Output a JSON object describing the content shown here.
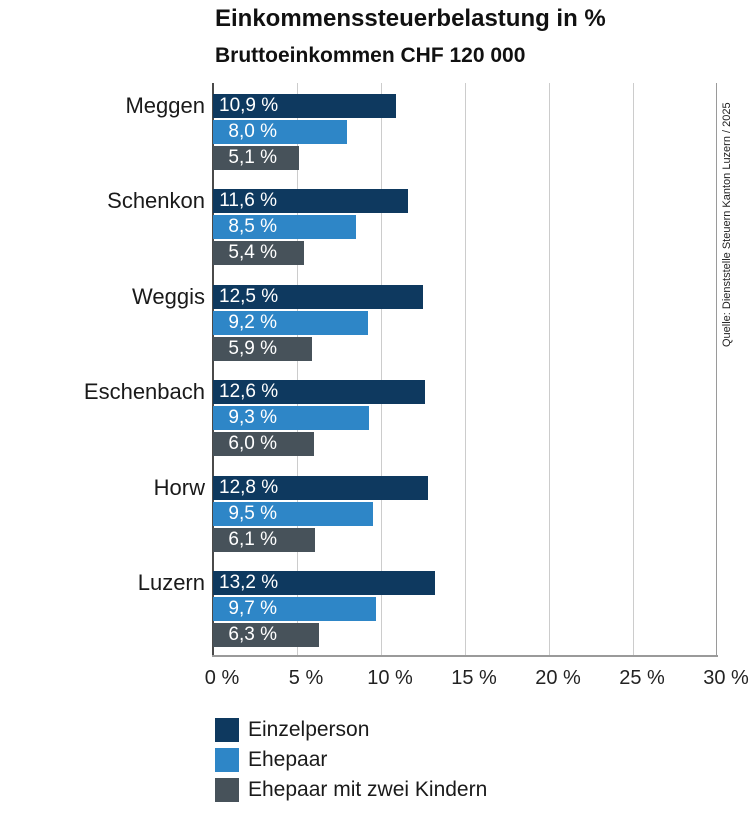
{
  "title": "Einkommenssteuerbelastung in %",
  "subtitle": "Bruttoeinkommen CHF 120 000",
  "source_note": "Quelle: Dienststelle Steuern Kanton Luzern /  2025",
  "colors": {
    "series_einzelperson": "#0e395f",
    "series_ehepaar": "#2e86c7",
    "series_ehepaar_kinder": "#47525a",
    "gridline": "#cccccc",
    "axis": "#9a9a9a",
    "text": "#1a1a1a",
    "bar_value_text": "#ffffff"
  },
  "chart_data": {
    "type": "bar",
    "orientation": "horizontal",
    "title": "Einkommenssteuerbelastung in %",
    "subtitle": "Bruttoeinkommen CHF 120 000",
    "categories": [
      "Meggen",
      "Schenkon",
      "Weggis",
      "Eschenbach",
      "Horw",
      "Luzern"
    ],
    "series": [
      {
        "name": "Einzelperson",
        "color": "#0e395f",
        "values": [
          10.9,
          11.6,
          12.5,
          12.6,
          12.8,
          13.2
        ],
        "value_labels": [
          "10,9 %",
          "11,6 %",
          "12,5 %",
          "12,6 %",
          "12,8 %",
          "13,2 %"
        ]
      },
      {
        "name": "Ehepaar",
        "color": "#2e86c7",
        "values": [
          8.0,
          8.5,
          9.2,
          9.3,
          9.5,
          9.7
        ],
        "value_labels": [
          "8,0 %",
          "8,5 %",
          "9,2 %",
          "9,3 %",
          "9,5 %",
          "9,7 %"
        ]
      },
      {
        "name": "Ehepaar mit zwei Kindern",
        "color": "#47525a",
        "values": [
          5.1,
          5.4,
          5.9,
          6.0,
          6.1,
          6.3
        ],
        "value_labels": [
          "5,1 %",
          "5,4 %",
          "5,9 %",
          "6,0 %",
          "6,1 %",
          "6,3 %"
        ]
      }
    ],
    "xlim": [
      0,
      30
    ],
    "x_ticks": [
      0,
      5,
      10,
      15,
      20,
      25,
      30
    ],
    "x_tick_labels": [
      "0 %",
      "5 %",
      "10 %",
      "15 %",
      "20 %",
      "25 %",
      "30 %"
    ],
    "grid": true,
    "legend_position": "bottom-left"
  }
}
